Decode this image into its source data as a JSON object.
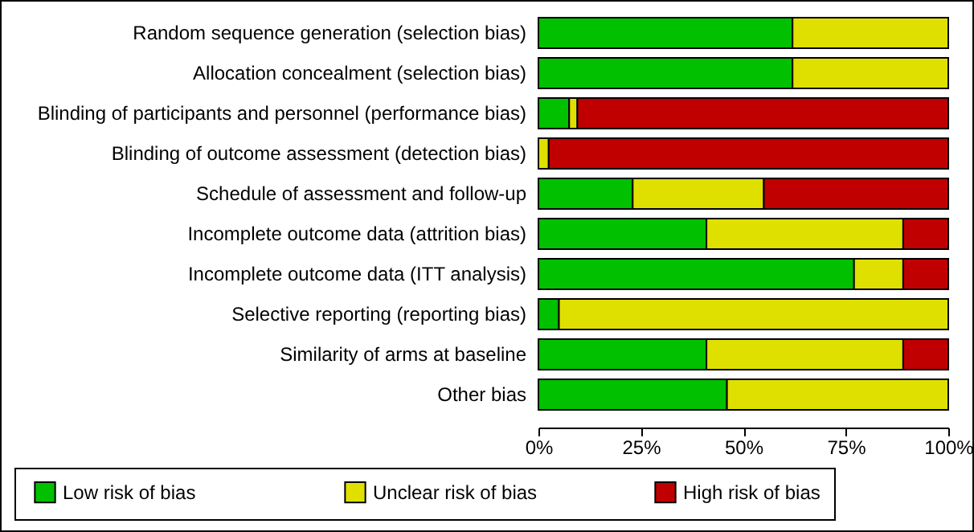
{
  "chart_data": {
    "type": "bar",
    "orientation": "horizontal",
    "stacked": true,
    "categories": [
      "Random sequence generation (selection bias)",
      "Allocation concealment (selection bias)",
      "Blinding of participants and personnel (performance bias)",
      "Blinding of outcome assessment (detection bias)",
      "Schedule of assessment and follow-up",
      "Incomplete outcome data (attrition bias)",
      "Incomplete outcome data (ITT analysis)",
      "Selective reporting (reporting bias)",
      "Similarity of arms at baseline",
      "Other bias"
    ],
    "series": [
      {
        "name": "Low risk of bias",
        "color": "#00c000",
        "values": [
          62,
          62,
          7.5,
          0,
          23,
          41,
          77,
          5,
          41,
          46
        ]
      },
      {
        "name": "Unclear risk of bias",
        "color": "#e0e000",
        "values": [
          38,
          38,
          2,
          2.5,
          32,
          48,
          12,
          95,
          48,
          54
        ]
      },
      {
        "name": "High risk of bias",
        "color": "#c00000",
        "values": [
          0,
          0,
          90.5,
          97.5,
          45,
          11,
          11,
          0,
          11,
          0
        ]
      }
    ],
    "xlim": [
      0,
      100
    ],
    "xticks": [
      {
        "value": 0,
        "label": "0%"
      },
      {
        "value": 25,
        "label": "25%"
      },
      {
        "value": 50,
        "label": "50%"
      },
      {
        "value": 75,
        "label": "75%"
      },
      {
        "value": 100,
        "label": "100%"
      }
    ],
    "grid": false,
    "legend": "bottom"
  }
}
